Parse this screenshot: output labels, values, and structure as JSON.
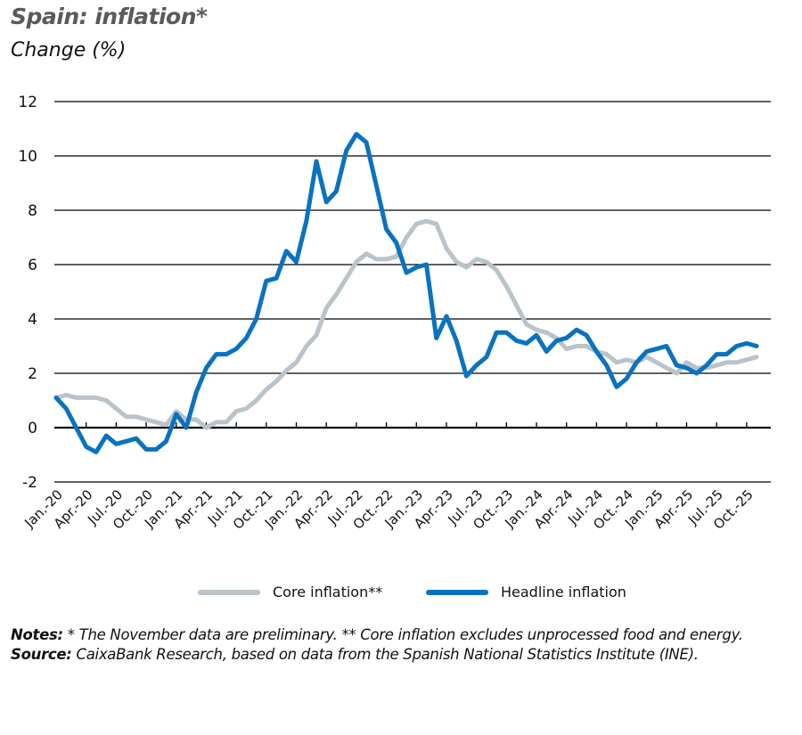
{
  "header": {
    "title": "Spain: inflation*",
    "subtitle": "Change (%)"
  },
  "legend": {
    "core_label": "Core inflation**",
    "headline_label": "Headline inflation"
  },
  "notes": {
    "notes_label": "Notes:",
    "notes_text": " * The November data are preliminary. ** Core inflation excludes unprocessed food and energy.",
    "source_label": "Source:",
    "source_text": " CaixaBank Research, based on data from the Spanish National Statistics Institute (INE)."
  },
  "colors": {
    "core": "#b9c3c9",
    "headline": "#0a72c0",
    "grid": "#000000",
    "title": "#5a5a5a"
  },
  "chart_data": {
    "type": "line",
    "title": "Spain: inflation*",
    "subtitle": "Change (%)",
    "xlabel": "",
    "ylabel": "Change (%)",
    "ylim": [
      -2,
      12
    ],
    "yticks": [
      -2,
      0,
      2,
      4,
      6,
      8,
      10,
      12
    ],
    "grid": true,
    "legend_position": "bottom",
    "x_start": "Jan.-20",
    "x_end": "Nov.-25",
    "frequency": "monthly",
    "xtick_labels": [
      "Jan.-20",
      "Apr.-20",
      "Jul.-20",
      "Oct.-20",
      "Jan.-21",
      "Apr.-21",
      "Jul.-21",
      "Oct.-21",
      "Jan.-22",
      "Apr.-22",
      "Jul.-22",
      "Oct.-22",
      "Jan.-23",
      "Apr.-23",
      "Jul.-23",
      "Oct.-23",
      "Jan.-24",
      "Apr.-24",
      "Jul.-24",
      "Oct.-24",
      "Jan.-25",
      "Apr.-25",
      "Jul.-25",
      "Oct.-25"
    ],
    "series": [
      {
        "name": "Core inflation**",
        "color": "#b9c3c9",
        "values": [
          1.1,
          1.2,
          1.1,
          1.1,
          1.1,
          1.0,
          0.7,
          0.4,
          0.4,
          0.3,
          0.2,
          0.1,
          0.6,
          0.3,
          0.3,
          0.0,
          0.2,
          0.2,
          0.6,
          0.7,
          1.0,
          1.4,
          1.7,
          2.1,
          2.4,
          3.0,
          3.4,
          4.4,
          4.9,
          5.5,
          6.1,
          6.4,
          6.2,
          6.2,
          6.3,
          7.0,
          7.5,
          7.6,
          7.5,
          6.6,
          6.1,
          5.9,
          6.2,
          6.1,
          5.8,
          5.2,
          4.5,
          3.8,
          3.6,
          3.5,
          3.3,
          2.9,
          3.0,
          3.0,
          2.8,
          2.7,
          2.4,
          2.5,
          2.4,
          2.6,
          2.4,
          2.2,
          2.0,
          2.4,
          2.2,
          2.2,
          2.3,
          2.4,
          2.4,
          2.5,
          2.6
        ]
      },
      {
        "name": "Headline inflation",
        "color": "#0a72c0",
        "values": [
          1.1,
          0.7,
          0.0,
          -0.7,
          -0.9,
          -0.3,
          -0.6,
          -0.5,
          -0.4,
          -0.8,
          -0.8,
          -0.5,
          0.5,
          0.0,
          1.3,
          2.2,
          2.7,
          2.7,
          2.9,
          3.3,
          4.0,
          5.4,
          5.5,
          6.5,
          6.1,
          7.6,
          9.8,
          8.3,
          8.7,
          10.2,
          10.8,
          10.5,
          8.9,
          7.3,
          6.8,
          5.7,
          5.9,
          6.0,
          3.3,
          4.1,
          3.2,
          1.9,
          2.3,
          2.6,
          3.5,
          3.5,
          3.2,
          3.1,
          3.4,
          2.8,
          3.2,
          3.3,
          3.6,
          3.4,
          2.8,
          2.3,
          1.5,
          1.8,
          2.4,
          2.8,
          2.9,
          3.0,
          2.3,
          2.2,
          2.0,
          2.3,
          2.7,
          2.7,
          3.0,
          3.1,
          3.0
        ]
      }
    ]
  }
}
